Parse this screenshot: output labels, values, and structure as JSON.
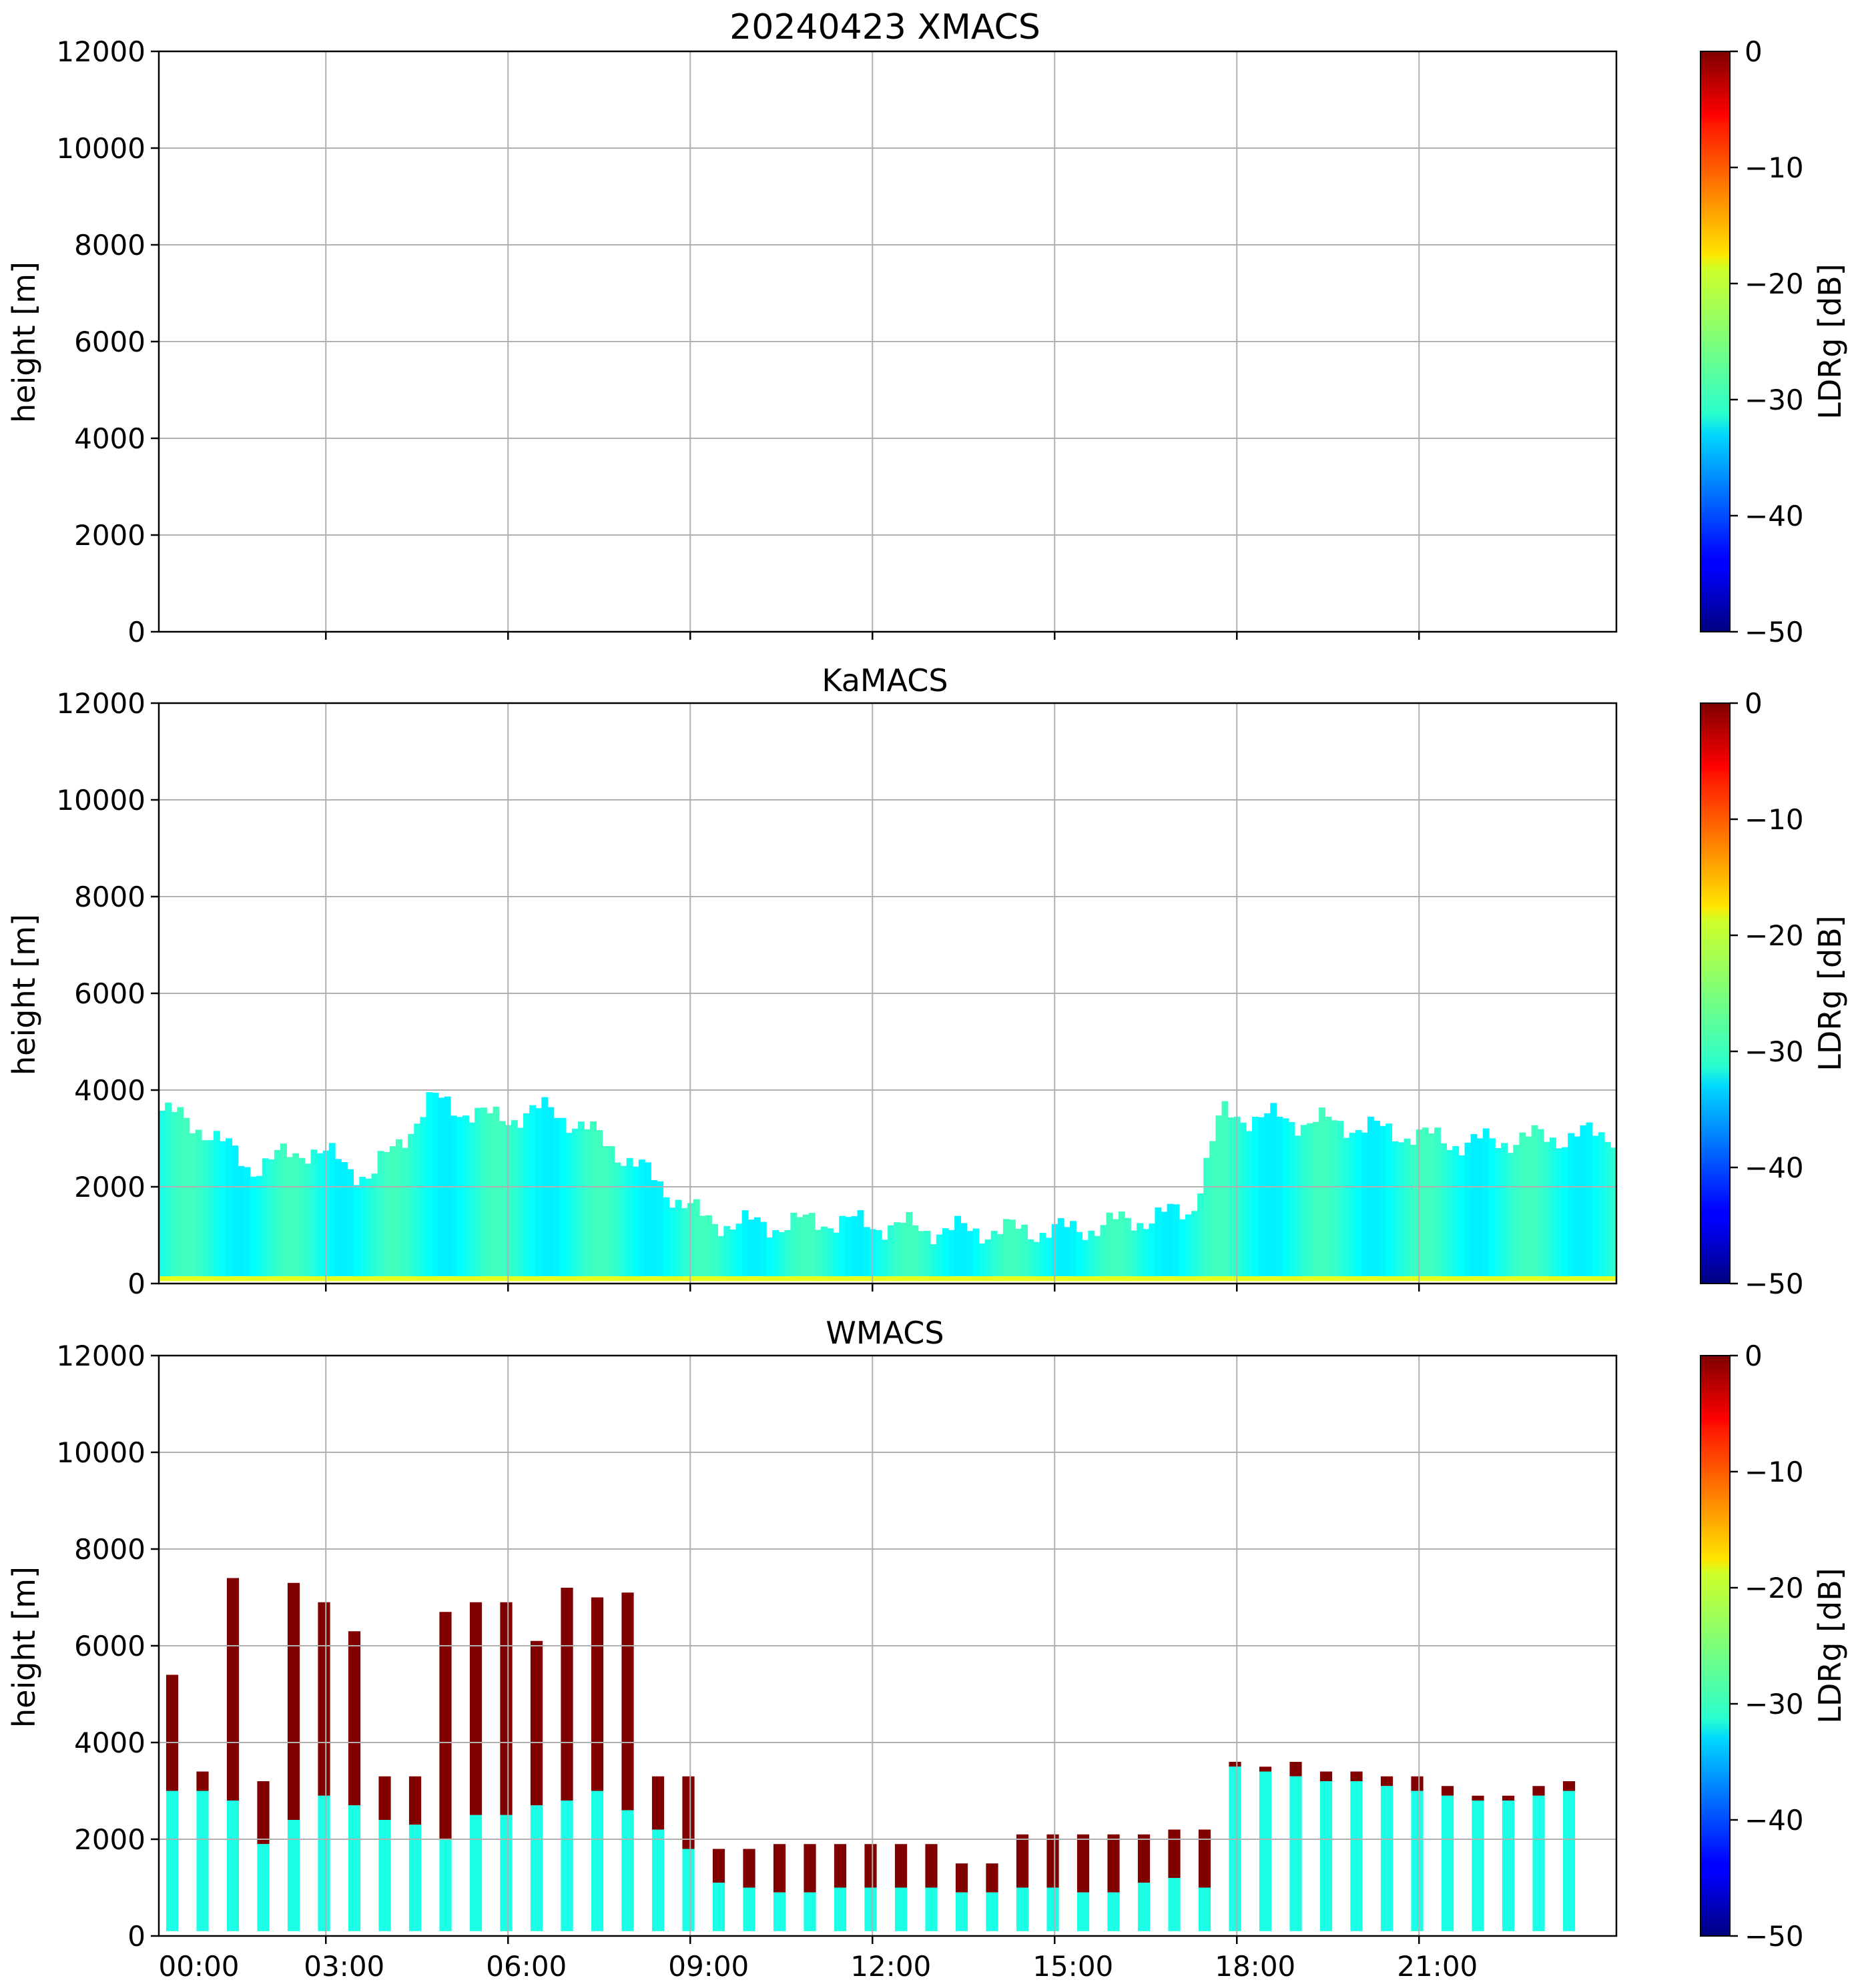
{
  "figure": {
    "colorbar_label": "LDRg [dB]",
    "colormap": "jet",
    "colorbar_ticks": [
      "0",
      "−10",
      "−20",
      "−30",
      "−40",
      "−50"
    ]
  },
  "chart_data": [
    {
      "type": "heatmap",
      "title": "20240423 XMACS",
      "xlabel": "",
      "ylabel": "height [m]",
      "xlim": [
        "00:00",
        "24:00"
      ],
      "ylim": [
        0,
        12000
      ],
      "yticks": [
        "0",
        "2000",
        "4000",
        "6000",
        "8000",
        "10000",
        "12000"
      ],
      "clim": [
        -50,
        0
      ],
      "grid": true,
      "data": []
    },
    {
      "type": "heatmap",
      "title": "KaMACS",
      "xlabel": "",
      "ylabel": "height [m]",
      "xlim": [
        "00:00",
        "24:00"
      ],
      "ylim": [
        0,
        12000
      ],
      "yticks": [
        "0",
        "2000",
        "4000",
        "6000",
        "8000",
        "10000",
        "12000"
      ],
      "clim": [
        -50,
        0
      ],
      "grid": true,
      "echo_top_profile": [
        {
          "time": "00:00",
          "top": 3600
        },
        {
          "time": "00:45",
          "top": 3200
        },
        {
          "time": "01:30",
          "top": 2400
        },
        {
          "time": "02:30",
          "top": 2800
        },
        {
          "time": "03:30",
          "top": 2200
        },
        {
          "time": "04:30",
          "top": 3800
        },
        {
          "time": "05:30",
          "top": 3400
        },
        {
          "time": "06:30",
          "top": 3600
        },
        {
          "time": "07:30",
          "top": 2800
        },
        {
          "time": "08:30",
          "top": 1800
        },
        {
          "time": "09:00",
          "top": 1300
        },
        {
          "time": "10:00",
          "top": 1200
        },
        {
          "time": "11:00",
          "top": 1300
        },
        {
          "time": "12:00",
          "top": 1200
        },
        {
          "time": "13:00",
          "top": 1100
        },
        {
          "time": "14:00",
          "top": 1100
        },
        {
          "time": "15:00",
          "top": 1100
        },
        {
          "time": "16:00",
          "top": 1300
        },
        {
          "time": "17:00",
          "top": 1500
        },
        {
          "time": "17:30",
          "top": 3500
        },
        {
          "time": "18:30",
          "top": 3400
        },
        {
          "time": "19:30",
          "top": 3300
        },
        {
          "time": "20:30",
          "top": 3100
        },
        {
          "time": "21:30",
          "top": 2900
        },
        {
          "time": "22:30",
          "top": 3000
        },
        {
          "time": "24:00",
          "top": 3100
        }
      ],
      "typical_ldr": -30,
      "near_surface_ldr": -20
    },
    {
      "type": "heatmap",
      "title": "WMACS",
      "xlabel": "",
      "ylabel": "height [m]",
      "xlim": [
        "00:00",
        "24:00"
      ],
      "ylim": [
        0,
        12000
      ],
      "xticks": [
        "00:00",
        "03:00",
        "06:00",
        "09:00",
        "12:00",
        "15:00",
        "18:00",
        "21:00"
      ],
      "yticks": [
        "0",
        "2000",
        "4000",
        "6000",
        "8000",
        "10000",
        "12000"
      ],
      "clim": [
        -50,
        0
      ],
      "grid": true,
      "scan_period_minutes": 30,
      "column_profile": [
        {
          "time": "00:00",
          "bright_top": 3000,
          "top": 5400
        },
        {
          "time": "00:30",
          "bright_top": 3000,
          "top": 3400
        },
        {
          "time": "01:00",
          "bright_top": 2800,
          "top": 7400
        },
        {
          "time": "01:30",
          "bright_top": 1900,
          "top": 3200
        },
        {
          "time": "02:00",
          "bright_top": 2400,
          "top": 7300
        },
        {
          "time": "02:30",
          "bright_top": 2900,
          "top": 6900
        },
        {
          "time": "03:00",
          "bright_top": 2700,
          "top": 6300
        },
        {
          "time": "03:30",
          "bright_top": 2400,
          "top": 3300
        },
        {
          "time": "04:00",
          "bright_top": 2300,
          "top": 3300
        },
        {
          "time": "04:30",
          "bright_top": 2000,
          "top": 6700
        },
        {
          "time": "05:00",
          "bright_top": 2500,
          "top": 6900
        },
        {
          "time": "05:30",
          "bright_top": 2500,
          "top": 6900
        },
        {
          "time": "06:00",
          "bright_top": 2700,
          "top": 6100
        },
        {
          "time": "06:30",
          "bright_top": 2800,
          "top": 7200
        },
        {
          "time": "07:00",
          "bright_top": 3000,
          "top": 7000
        },
        {
          "time": "07:30",
          "bright_top": 2600,
          "top": 7100
        },
        {
          "time": "08:00",
          "bright_top": 2200,
          "top": 3300
        },
        {
          "time": "08:30",
          "bright_top": 1800,
          "top": 3300
        },
        {
          "time": "09:00",
          "bright_top": 1100,
          "top": 1800
        },
        {
          "time": "09:30",
          "bright_top": 1000,
          "top": 1800
        },
        {
          "time": "10:00",
          "bright_top": 900,
          "top": 1900
        },
        {
          "time": "10:30",
          "bright_top": 900,
          "top": 1900
        },
        {
          "time": "11:00",
          "bright_top": 1000,
          "top": 1900
        },
        {
          "time": "11:30",
          "bright_top": 1000,
          "top": 1900
        },
        {
          "time": "12:00",
          "bright_top": 1000,
          "top": 1900
        },
        {
          "time": "12:30",
          "bright_top": 1000,
          "top": 1900
        },
        {
          "time": "13:00",
          "bright_top": 900,
          "top": 1500
        },
        {
          "time": "13:30",
          "bright_top": 900,
          "top": 1500
        },
        {
          "time": "14:00",
          "bright_top": 1000,
          "top": 2100
        },
        {
          "time": "14:30",
          "bright_top": 1000,
          "top": 2100
        },
        {
          "time": "15:00",
          "bright_top": 900,
          "top": 2100
        },
        {
          "time": "15:30",
          "bright_top": 900,
          "top": 2100
        },
        {
          "time": "16:00",
          "bright_top": 1100,
          "top": 2100
        },
        {
          "time": "16:30",
          "bright_top": 1200,
          "top": 2200
        },
        {
          "time": "17:00",
          "bright_top": 1000,
          "top": 2200
        },
        {
          "time": "17:30",
          "bright_top": 3500,
          "top": 3600
        },
        {
          "time": "18:00",
          "bright_top": 3400,
          "top": 3500
        },
        {
          "time": "18:30",
          "bright_top": 3300,
          "top": 3600
        },
        {
          "time": "19:00",
          "bright_top": 3200,
          "top": 3400
        },
        {
          "time": "19:30",
          "bright_top": 3200,
          "top": 3400
        },
        {
          "time": "20:00",
          "bright_top": 3100,
          "top": 3300
        },
        {
          "time": "20:30",
          "bright_top": 3000,
          "top": 3300
        },
        {
          "time": "21:00",
          "bright_top": 2900,
          "top": 3100
        },
        {
          "time": "21:30",
          "bright_top": 2800,
          "top": 2900
        },
        {
          "time": "22:00",
          "bright_top": 2800,
          "top": 2900
        },
        {
          "time": "22:30",
          "bright_top": 2900,
          "top": 3100
        },
        {
          "time": "23:00",
          "bright_top": 3000,
          "top": 3200
        }
      ],
      "upper_ldr": 0,
      "lower_ldr": -30
    }
  ]
}
